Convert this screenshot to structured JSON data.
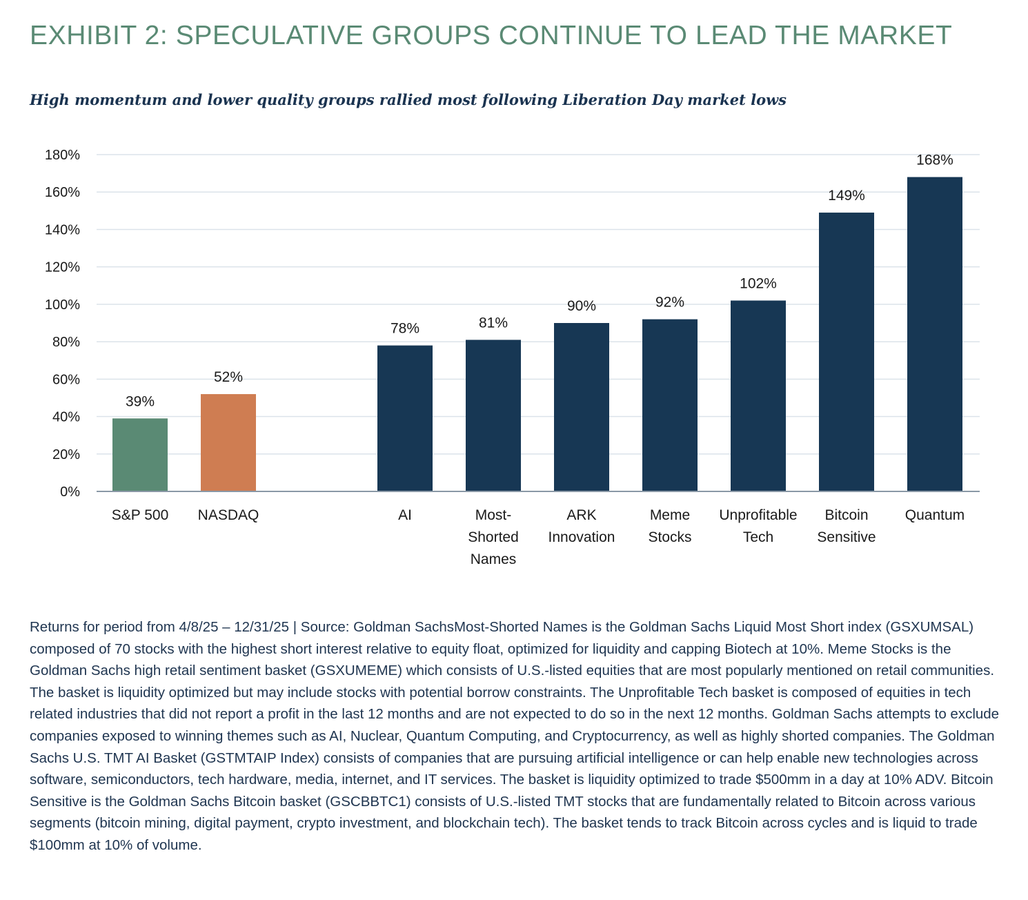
{
  "header": {
    "title": "EXHIBIT 2: SPECULATIVE GROUPS CONTINUE TO LEAD THE MARKET",
    "subtitle": "High momentum and lower quality groups rallied most following Liberation Day market lows"
  },
  "chart_data": {
    "type": "bar",
    "title": "",
    "xlabel": "",
    "ylabel": "",
    "ylim": [
      0,
      180
    ],
    "yticks": [
      0,
      20,
      40,
      60,
      80,
      100,
      120,
      140,
      160,
      180
    ],
    "ytick_format": "%",
    "grid": "horizontal",
    "legend": "none",
    "categories": [
      [
        "S&P 500"
      ],
      [
        "NASDAQ"
      ],
      [
        "AI"
      ],
      [
        "Most-",
        "Shorted",
        "Names"
      ],
      [
        "ARK",
        "Innovation"
      ],
      [
        "Meme",
        "Stocks"
      ],
      [
        "Unprofitable",
        "Tech"
      ],
      [
        "Bitcoin",
        "Sensitive"
      ],
      [
        "Quantum"
      ]
    ],
    "values": [
      39,
      52,
      78,
      81,
      90,
      92,
      102,
      149,
      168
    ],
    "data_labels": [
      "39%",
      "52%",
      "78%",
      "81%",
      "90%",
      "92%",
      "102%",
      "149%",
      "168%"
    ],
    "colors": [
      "#5a8a74",
      "#cf7d52",
      "#173754",
      "#173754",
      "#173754",
      "#173754",
      "#173754",
      "#173754",
      "#173754"
    ],
    "group_gap_after_index": 1
  },
  "footnote": {
    "text": "Returns for period from 4/8/25 – 12/31/25 | Source: Goldman SachsMost-Shorted Names is the Goldman Sachs Liquid Most Short index (GSXUMSAL) composed of 70 stocks with the highest short interest relative to equity float, optimized for liquidity and capping Biotech at 10%. Meme Stocks is the Goldman Sachs high retail sentiment basket (GSXUMEME) which consists of U.S.-listed equities that are most popularly mentioned on retail communities. The basket is liquidity optimized but may include stocks with potential borrow constraints. The Unprofitable Tech basket is composed of equities in tech related industries that did not report a profit in the last 12 months and are not expected to do so in the next 12 months. Goldman Sachs attempts to exclude companies exposed to winning themes such as AI, Nuclear, Quantum Computing, and Cryptocurrency, as well as highly shorted companies. The Goldman Sachs U.S. TMT AI Basket (GSTMTAIP Index) consists of companies that are pursuing artificial intelligence or can help enable new technologies across software, semiconductors, tech hardware, media, internet, and IT services. The basket is liquidity optimized to trade $500mm in a day at 10% ADV. Bitcoin Sensitive is the Goldman Sachs Bitcoin basket (GSCBBTC1) consists of U.S.-listed TMT stocks that are fundamentally related to Bitcoin across various segments (bitcoin mining, digital payment, crypto investment, and blockchain tech). The basket tends to track Bitcoin across cycles and is liquid to trade $100mm at 10% of volume."
  },
  "colors": {
    "title": "#5a8a74",
    "subtitle": "#1a3350",
    "footnote": "#1f3550",
    "gridline": "#dbe3ea",
    "axis": "#8a98a6"
  }
}
